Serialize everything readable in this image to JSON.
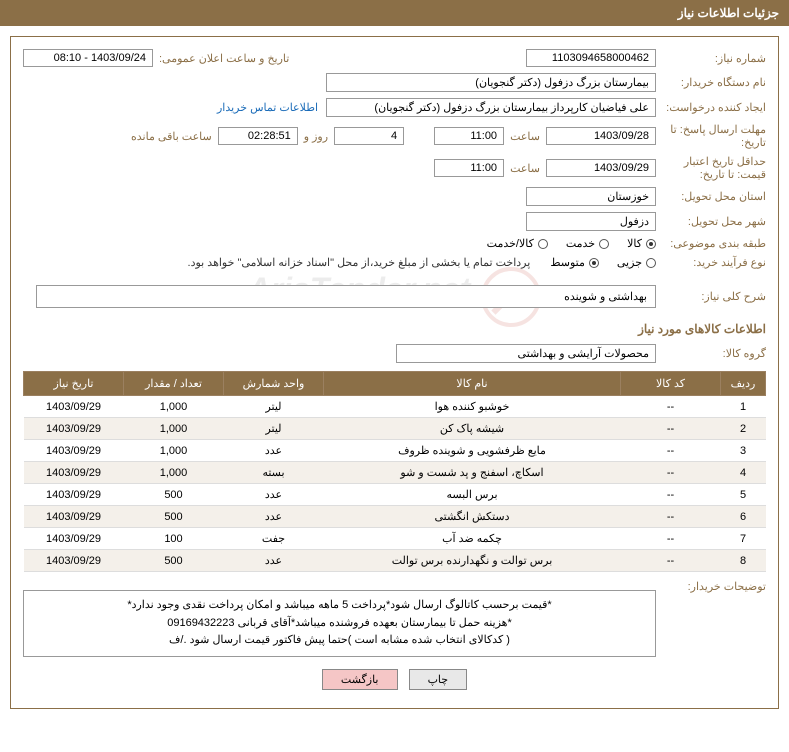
{
  "header": {
    "title": "جزئیات اطلاعات نیاز"
  },
  "fields": {
    "need_number": {
      "label": "شماره نیاز:",
      "value": "1103094658000462"
    },
    "announce_datetime": {
      "label": "تاریخ و ساعت اعلان عمومی:",
      "value": "1403/09/24 - 08:10"
    },
    "buyer_org": {
      "label": "نام دستگاه خریدار:",
      "value": "بیمارستان بزرگ دزفول (دکتر گنجویان)"
    },
    "requester": {
      "label": "ایجاد کننده درخواست:",
      "value": "علی فیاضیان کارپرداز بیمارستان بزرگ دزفول (دکتر گنجویان)"
    },
    "contact_link": "اطلاعات تماس خریدار",
    "response_deadline": {
      "label": "مهلت ارسال پاسخ: تا تاریخ:",
      "date": "1403/09/28",
      "time_label": "ساعت",
      "time": "11:00"
    },
    "remaining": {
      "days": "4",
      "days_label": "روز و",
      "time": "02:28:51",
      "suffix": "ساعت باقی مانده"
    },
    "price_validity": {
      "label": "حداقل تاریخ اعتبار قیمت: تا تاریخ:",
      "date": "1403/09/29",
      "time_label": "ساعت",
      "time": "11:00"
    },
    "delivery_province": {
      "label": "استان محل تحویل:",
      "value": "خوزستان"
    },
    "delivery_city": {
      "label": "شهر محل تحویل:",
      "value": "دزفول"
    },
    "category": {
      "label": "طبقه بندی موضوعی:",
      "options": [
        "کالا",
        "خدمت",
        "کالا/خدمت"
      ],
      "selected": 0
    },
    "purchase_type": {
      "label": "نوع فرآیند خرید:",
      "options": [
        "جزیی",
        "متوسط"
      ],
      "selected": 1,
      "note": "پرداخت تمام یا بخشی از مبلغ خرید،از محل \"اسناد خزانه اسلامی\" خواهد بود."
    },
    "need_desc": {
      "label": "شرح کلی نیاز:",
      "value": "بهداشتی و شوینده"
    },
    "goods_info_title": "اطلاعات کالاهای مورد نیاز",
    "goods_group": {
      "label": "گروه کالا:",
      "value": "محصولات آرایشی و بهداشتی"
    }
  },
  "table": {
    "headers": [
      "ردیف",
      "کد کالا",
      "نام کالا",
      "واحد شمارش",
      "تعداد / مقدار",
      "تاریخ نیاز"
    ],
    "rows": [
      [
        "1",
        "--",
        "خوشبو کننده هوا",
        "لیتر",
        "1,000",
        "1403/09/29"
      ],
      [
        "2",
        "--",
        "شیشه پاک کن",
        "لیتر",
        "1,000",
        "1403/09/29"
      ],
      [
        "3",
        "--",
        "مایع ظرفشویی و شوینده ظروف",
        "عدد",
        "1,000",
        "1403/09/29"
      ],
      [
        "4",
        "--",
        "اسکاچ، اسفنج و پد شست و شو",
        "بسته",
        "1,000",
        "1403/09/29"
      ],
      [
        "5",
        "--",
        "برس البسه",
        "عدد",
        "500",
        "1403/09/29"
      ],
      [
        "6",
        "--",
        "دستکش انگشتی",
        "عدد",
        "500",
        "1403/09/29"
      ],
      [
        "7",
        "--",
        "چکمه ضد آب",
        "جفت",
        "100",
        "1403/09/29"
      ],
      [
        "8",
        "--",
        "برس توالت و نگهدارنده برس توالت",
        "عدد",
        "500",
        "1403/09/29"
      ]
    ]
  },
  "buyer_notes": {
    "label": "توضیحات خریدار:",
    "line1": "*قیمت برحسب کاتالوگ ارسال شود*پرداخت 5 ماهه میباشد و امکان پرداخت نقدی وجود ندارد*",
    "line2": "*هزینه حمل تا بیمارستان بعهده فروشنده میباشد*آقای قربانی 09169432223",
    "line3": "( کدکالای انتخاب شده مشابه است )حتما پیش فاکتور قیمت ارسال شود ./ف"
  },
  "buttons": {
    "print": "چاپ",
    "back": "بازگشت"
  },
  "watermark": "AriaTender.net",
  "colors": {
    "brand": "#8b6f47",
    "link": "#1a6bb8",
    "btn_back": "#f5c6c6"
  }
}
